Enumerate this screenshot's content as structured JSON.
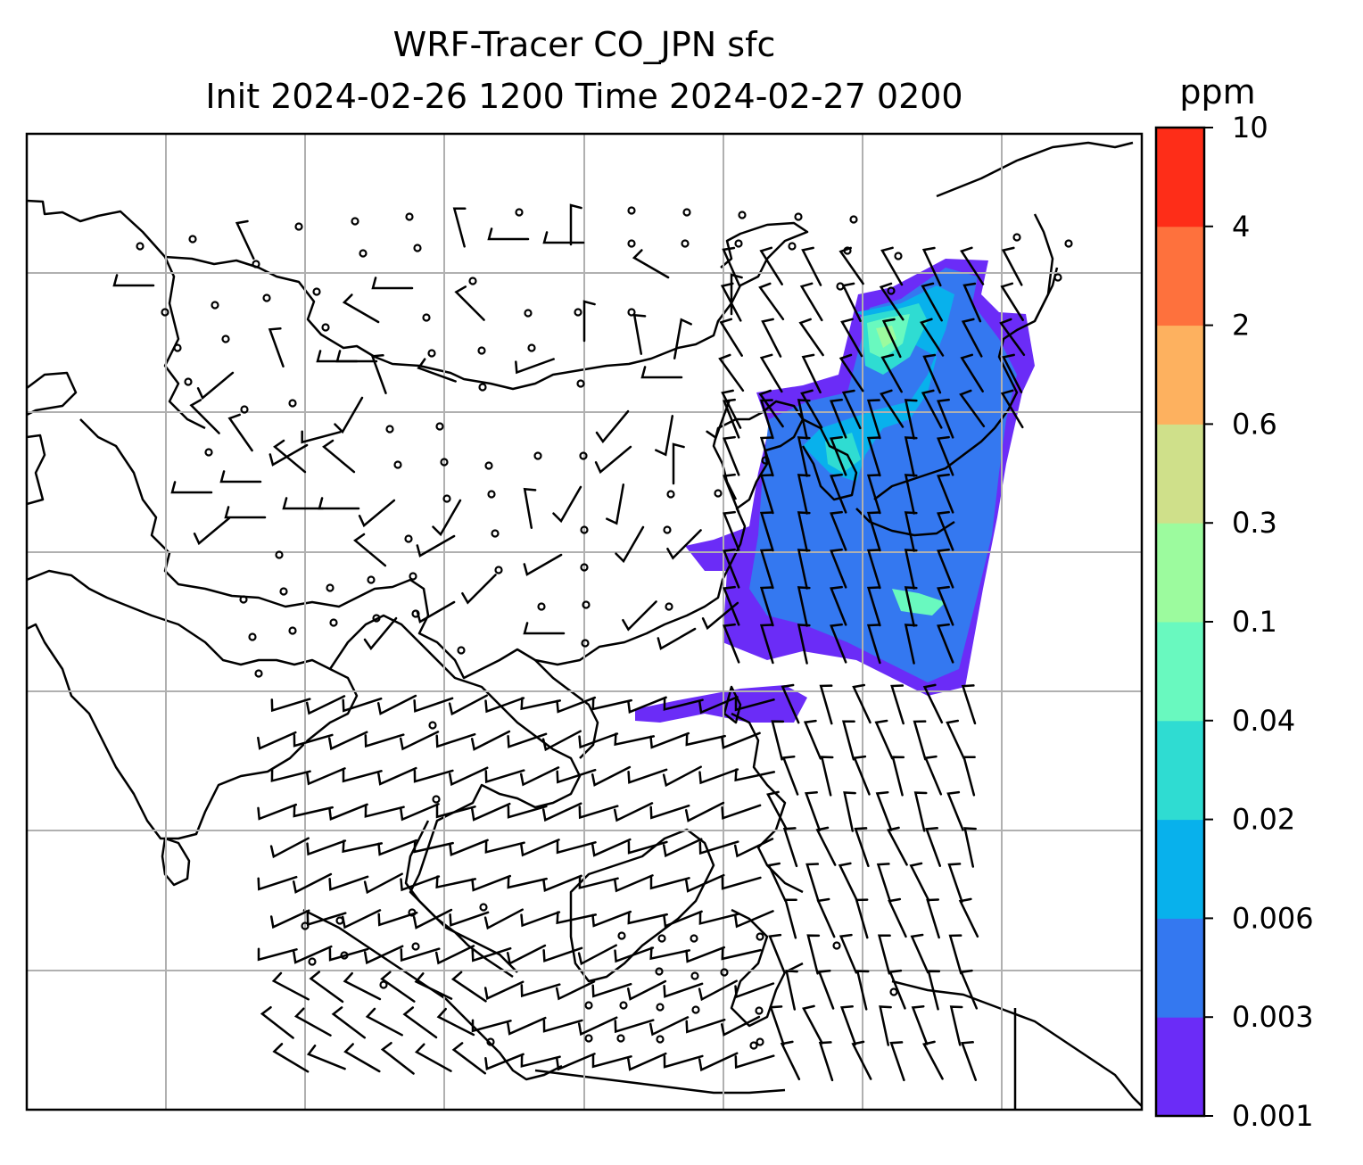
{
  "title_line1": "WRF-Tracer CO_JPN sfc",
  "title_line2": "Init 2024-02-26 1200 Time 2024-02-27 0200",
  "colorbar": {
    "units": "ppm",
    "levels": [
      "0.001",
      "0.003",
      "0.006",
      "0.02",
      "0.04",
      "0.1",
      "0.3",
      "0.6",
      "2",
      "4",
      "10"
    ],
    "colors": [
      "#6b2cf7",
      "#3478f0",
      "#08b1ec",
      "#2fdcd2",
      "#69f9bf",
      "#9cfb9e",
      "#cfe08a",
      "#fdb15f",
      "#fe713d",
      "#fe2d18"
    ]
  },
  "map": {
    "gridlines": true,
    "plume_region": "Japan / Korea / East China Sea",
    "icons": [
      "wind-barb",
      "calm-wind-circle"
    ]
  }
}
